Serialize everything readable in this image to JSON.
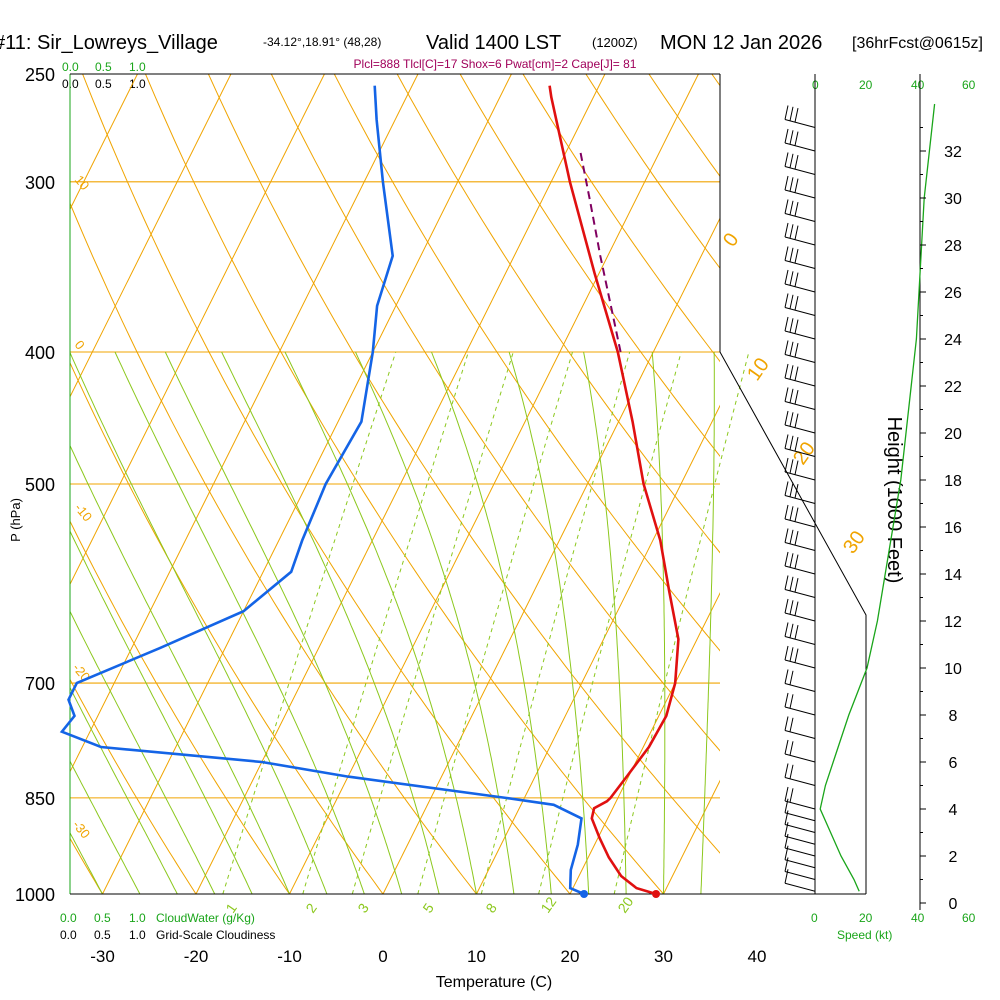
{
  "header": {
    "station": "#11: Sir_Lowreys_Village",
    "coords": "-34.12°,18.91° (48,28)",
    "valid": "Valid 1400 LST",
    "utc": "(1200Z)",
    "date": "MON 12 Jan 2026",
    "forecast": "[36hrFcst@0615z]"
  },
  "indices": "Plcl=888 Tlcl[C]=17 Shox=6 Pwat[cm]=2 Cape[J]= 81",
  "colors": {
    "temperature": "#e01010",
    "dewpoint": "#1464e6",
    "isotherm": "#f0a400",
    "dry_adiabat": "#f0a400",
    "moist_adiabat": "#8cc81e",
    "mixing_ratio": "#8cc81e",
    "parcel": "#800060",
    "cloud": "#1aa51a"
  },
  "left_scales": {
    "top_green": [
      "0.0",
      "0.5",
      "1.0"
    ],
    "top_black": [
      "0.0",
      "0.5",
      "1.0"
    ],
    "bottom_green": [
      "0.0",
      "0.5",
      "1.0"
    ],
    "bottom_black": [
      "0.0",
      "0.5",
      "1.0"
    ],
    "cloudwater_label": "CloudWater (g/Kg)",
    "cloudiness_label": "Grid-Scale Cloudiness"
  },
  "speed_scale": {
    "top": [
      "0",
      "20",
      "40",
      "60"
    ],
    "bottom": [
      "0",
      "20",
      "40",
      "60"
    ],
    "label": "Speed (kt)"
  },
  "chart_data": {
    "type": "skew-t",
    "xlabel": "Temperature (C)",
    "ylabel": "P (hPa)",
    "y2label": "Height (1000 Feet)",
    "pressure_ticks": [
      250,
      300,
      400,
      500,
      700,
      850,
      1000
    ],
    "temperature_ticks": [
      -30,
      -20,
      -10,
      0,
      10,
      20,
      30,
      40
    ],
    "height_ticks_kft": [
      0,
      2,
      4,
      6,
      8,
      10,
      12,
      14,
      16,
      18,
      20,
      22,
      24,
      26,
      28,
      30,
      32
    ],
    "temperature_profile": [
      {
        "p": 1000,
        "t": 29.2
      },
      {
        "p": 990,
        "t": 26.8
      },
      {
        "p": 970,
        "t": 24.5
      },
      {
        "p": 940,
        "t": 22.2
      },
      {
        "p": 910,
        "t": 20.2
      },
      {
        "p": 880,
        "t": 18.3
      },
      {
        "p": 865,
        "t": 18.0
      },
      {
        "p": 855,
        "t": 19.0
      },
      {
        "p": 850,
        "t": 19.2
      },
      {
        "p": 820,
        "t": 19.8
      },
      {
        "p": 780,
        "t": 20.6
      },
      {
        "p": 740,
        "t": 20.8
      },
      {
        "p": 700,
        "t": 20.0
      },
      {
        "p": 650,
        "t": 18.0
      },
      {
        "p": 600,
        "t": 14.5
      },
      {
        "p": 550,
        "t": 10.8
      },
      {
        "p": 500,
        "t": 6.0
      },
      {
        "p": 450,
        "t": 1.5
      },
      {
        "p": 400,
        "t": -3.8
      },
      {
        "p": 350,
        "t": -10.5
      },
      {
        "p": 300,
        "t": -18.0
      },
      {
        "p": 260,
        "t": -24.5
      },
      {
        "p": 255,
        "t": -25.3
      }
    ],
    "dewpoint_profile": [
      {
        "p": 1000,
        "t": 21.5
      },
      {
        "p": 990,
        "t": 19.7
      },
      {
        "p": 960,
        "t": 18.8
      },
      {
        "p": 920,
        "t": 18.2
      },
      {
        "p": 880,
        "t": 17.2
      },
      {
        "p": 860,
        "t": 13.5
      },
      {
        "p": 850,
        "t": 8.0
      },
      {
        "p": 820,
        "t": -10.0
      },
      {
        "p": 800,
        "t": -20.0
      },
      {
        "p": 780,
        "t": -38.0
      },
      {
        "p": 760,
        "t": -43.0
      },
      {
        "p": 740,
        "t": -42.5
      },
      {
        "p": 720,
        "t": -44.0
      },
      {
        "p": 700,
        "t": -44.0
      },
      {
        "p": 660,
        "t": -37.0
      },
      {
        "p": 620,
        "t": -30.0
      },
      {
        "p": 580,
        "t": -27.0
      },
      {
        "p": 550,
        "t": -27.5
      },
      {
        "p": 500,
        "t": -28.0
      },
      {
        "p": 450,
        "t": -27.5
      },
      {
        "p": 400,
        "t": -30.0
      },
      {
        "p": 370,
        "t": -32.0
      },
      {
        "p": 340,
        "t": -33.0
      },
      {
        "p": 300,
        "t": -38.0
      },
      {
        "p": 270,
        "t": -42.0
      },
      {
        "p": 255,
        "t": -44.0
      }
    ],
    "parcel_profile": [
      {
        "p": 400,
        "t": -3.5
      },
      {
        "p": 370,
        "t": -7.0
      },
      {
        "p": 340,
        "t": -10.8
      },
      {
        "p": 310,
        "t": -14.8
      },
      {
        "p": 285,
        "t": -18.5
      }
    ],
    "isotherm_labels": [
      "0",
      "10",
      "20",
      "30"
    ],
    "dry_adiabat_labels": [
      "10",
      "0",
      "-10",
      "-20",
      "-30"
    ],
    "mixing_ratio_labels": [
      "1",
      "2",
      "3",
      "5",
      "8",
      "12",
      "20"
    ],
    "wind_barbs_kft": [
      0.5,
      1,
      1.5,
      2,
      2.5,
      3,
      3.5,
      4,
      5,
      6,
      7,
      8,
      9,
      10,
      11,
      12,
      13,
      14,
      15,
      16,
      17,
      18,
      19,
      20,
      21,
      22,
      23,
      24,
      25,
      26,
      27,
      28,
      29,
      30,
      31,
      32,
      33
    ],
    "wind_speed_profile": [
      {
        "h": 0.5,
        "kt": 17
      },
      {
        "h": 1,
        "kt": 15
      },
      {
        "h": 2,
        "kt": 10
      },
      {
        "h": 3,
        "kt": 6
      },
      {
        "h": 4,
        "kt": 2
      },
      {
        "h": 5,
        "kt": 4
      },
      {
        "h": 6,
        "kt": 7
      },
      {
        "h": 8,
        "kt": 13
      },
      {
        "h": 10,
        "kt": 20
      },
      {
        "h": 12,
        "kt": 24
      },
      {
        "h": 14,
        "kt": 27
      },
      {
        "h": 16,
        "kt": 30
      },
      {
        "h": 18,
        "kt": 33
      },
      {
        "h": 20,
        "kt": 35
      },
      {
        "h": 22,
        "kt": 37
      },
      {
        "h": 24,
        "kt": 39
      },
      {
        "h": 26,
        "kt": 40
      },
      {
        "h": 28,
        "kt": 41
      },
      {
        "h": 30,
        "kt": 42
      },
      {
        "h": 32,
        "kt": 44
      },
      {
        "h": 34,
        "kt": 46
      }
    ]
  }
}
